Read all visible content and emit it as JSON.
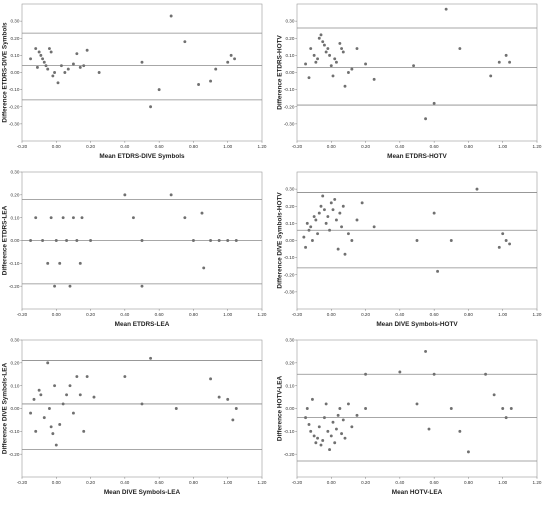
{
  "chart_data": [
    {
      "type": "scatter",
      "xlabel": "Mean ETDRS-DIVE Symbols",
      "ylabel": "Difference ETDRS-DIVE Symbols",
      "xlim": [
        -0.2,
        1.2
      ],
      "ylim": [
        -0.4,
        0.4
      ],
      "x_ticks": [
        "-0.20",
        "0.00",
        "0.20",
        "0.40",
        "0.60",
        "0.80",
        "1.00",
        "1.20"
      ],
      "y_ticks": [
        "0.30",
        "0.20",
        "0.10",
        "0.00",
        "-0.10",
        "-0.20",
        "-0.30"
      ],
      "x_tick_values": [
        -0.2,
        0,
        0.2,
        0.4,
        0.6,
        0.8,
        1.0,
        1.2
      ],
      "y_tick_values": [
        0.3,
        0.2,
        0.1,
        0,
        -0.1,
        -0.2,
        -0.3
      ],
      "ref_lines": [
        0.23,
        0.04,
        -0.16
      ],
      "points": [
        [
          -0.15,
          0.08
        ],
        [
          -0.12,
          0.14
        ],
        [
          -0.11,
          0.03
        ],
        [
          -0.1,
          0.12
        ],
        [
          -0.09,
          0.1
        ],
        [
          -0.08,
          0.08
        ],
        [
          -0.07,
          0.06
        ],
        [
          -0.06,
          0.04
        ],
        [
          -0.05,
          0.02
        ],
        [
          -0.04,
          0.14
        ],
        [
          -0.03,
          0.12
        ],
        [
          -0.02,
          -0.02
        ],
        [
          -0.01,
          0.0
        ],
        [
          0.01,
          -0.06
        ],
        [
          0.03,
          0.04
        ],
        [
          0.05,
          0.0
        ],
        [
          0.07,
          0.02
        ],
        [
          0.1,
          0.05
        ],
        [
          0.12,
          0.11
        ],
        [
          0.14,
          0.03
        ],
        [
          0.16,
          0.04
        ],
        [
          0.18,
          0.13
        ],
        [
          0.25,
          0.0
        ],
        [
          0.5,
          0.06
        ],
        [
          0.55,
          -0.2
        ],
        [
          0.6,
          -0.1
        ],
        [
          0.67,
          0.33
        ],
        [
          0.75,
          0.18
        ],
        [
          0.83,
          -0.07
        ],
        [
          0.9,
          -0.05
        ],
        [
          0.93,
          0.02
        ],
        [
          1.0,
          0.06
        ],
        [
          1.02,
          0.1
        ],
        [
          1.04,
          0.08
        ]
      ]
    },
    {
      "type": "scatter",
      "xlabel": "Mean ETDRS-HOTV",
      "ylabel": "Difference ETDRS-HOTV",
      "xlim": [
        -0.2,
        1.2
      ],
      "ylim": [
        -0.4,
        0.4
      ],
      "x_ticks": [
        "-0.20",
        "0.00",
        "0.20",
        "0.40",
        "0.60",
        "0.80",
        "1.00",
        "1.20"
      ],
      "y_ticks": [
        "0.30",
        "0.20",
        "0.10",
        "0.00",
        "-0.10",
        "-0.20",
        "-0.30"
      ],
      "x_tick_values": [
        -0.2,
        0,
        0.2,
        0.4,
        0.6,
        0.8,
        1.0,
        1.2
      ],
      "y_tick_values": [
        0.3,
        0.2,
        0.1,
        0,
        -0.1,
        -0.2,
        -0.3
      ],
      "ref_lines": [
        0.26,
        0.03,
        -0.19
      ],
      "points": [
        [
          -0.15,
          0.05
        ],
        [
          -0.13,
          -0.03
        ],
        [
          -0.12,
          0.14
        ],
        [
          -0.1,
          0.1
        ],
        [
          -0.09,
          0.06
        ],
        [
          -0.08,
          0.08
        ],
        [
          -0.07,
          0.2
        ],
        [
          -0.06,
          0.22
        ],
        [
          -0.05,
          0.18
        ],
        [
          -0.04,
          0.16
        ],
        [
          -0.03,
          0.12
        ],
        [
          -0.02,
          0.14
        ],
        [
          -0.01,
          0.1
        ],
        [
          0.0,
          0.04
        ],
        [
          0.01,
          -0.02
        ],
        [
          0.02,
          0.08
        ],
        [
          0.03,
          0.06
        ],
        [
          0.05,
          0.17
        ],
        [
          0.06,
          0.14
        ],
        [
          0.07,
          0.12
        ],
        [
          0.08,
          -0.08
        ],
        [
          0.1,
          0.0
        ],
        [
          0.12,
          0.02
        ],
        [
          0.15,
          0.14
        ],
        [
          0.2,
          0.05
        ],
        [
          0.25,
          -0.04
        ],
        [
          0.48,
          0.04
        ],
        [
          0.55,
          -0.27
        ],
        [
          0.6,
          -0.18
        ],
        [
          0.67,
          0.37
        ],
        [
          0.75,
          0.14
        ],
        [
          0.93,
          -0.02
        ],
        [
          0.98,
          0.06
        ],
        [
          1.02,
          0.1
        ],
        [
          1.04,
          0.06
        ]
      ]
    },
    {
      "type": "scatter",
      "xlabel": "Mean ETDRS-LEA",
      "ylabel": "Difference ETDRS-LEA",
      "xlim": [
        -0.2,
        1.2
      ],
      "ylim": [
        -0.3,
        0.3
      ],
      "x_ticks": [
        "-0.20",
        "0.00",
        "0.20",
        "0.40",
        "0.60",
        "0.80",
        "1.00",
        "1.20"
      ],
      "y_ticks": [
        "0.30",
        "0.20",
        "0.10",
        "0.00",
        "-0.10",
        "-0.20"
      ],
      "x_tick_values": [
        -0.2,
        0,
        0.2,
        0.4,
        0.6,
        0.8,
        1.0,
        1.2
      ],
      "y_tick_values": [
        0.3,
        0.2,
        0.1,
        0,
        -0.1,
        -0.2
      ],
      "ref_lines": [
        0.18,
        0.0,
        -0.19
      ],
      "points": [
        [
          -0.15,
          0.0
        ],
        [
          -0.12,
          0.1
        ],
        [
          -0.08,
          0.0
        ],
        [
          -0.05,
          -0.1
        ],
        [
          -0.03,
          0.1
        ],
        [
          -0.01,
          -0.2
        ],
        [
          0.0,
          0.0
        ],
        [
          0.02,
          -0.1
        ],
        [
          0.04,
          0.1
        ],
        [
          0.06,
          0.0
        ],
        [
          0.08,
          -0.2
        ],
        [
          0.1,
          0.1
        ],
        [
          0.12,
          0.0
        ],
        [
          0.14,
          -0.1
        ],
        [
          0.15,
          0.1
        ],
        [
          0.2,
          0.0
        ],
        [
          0.4,
          0.2
        ],
        [
          0.45,
          0.1
        ],
        [
          0.5,
          0.0
        ],
        [
          0.5,
          -0.2
        ],
        [
          0.67,
          0.2
        ],
        [
          0.75,
          0.1
        ],
        [
          0.8,
          0.0
        ],
        [
          0.85,
          0.12
        ],
        [
          0.86,
          -0.12
        ],
        [
          0.9,
          0.0
        ],
        [
          0.95,
          0.0
        ],
        [
          1.0,
          0.0
        ],
        [
          1.05,
          0.0
        ]
      ]
    },
    {
      "type": "scatter",
      "xlabel": "Mean DIVE Symbols-HOTV",
      "ylabel": "Difference DIVE Symbols-HOTV",
      "xlim": [
        -0.2,
        1.2
      ],
      "ylim": [
        -0.4,
        0.4
      ],
      "x_ticks": [
        "-0.20",
        "0.00",
        "0.20",
        "0.40",
        "0.60",
        "0.80",
        "1.00",
        "1.20"
      ],
      "y_ticks": [
        "0.30",
        "0.20",
        "0.10",
        "0.00",
        "-0.10",
        "-0.20",
        "-0.30"
      ],
      "x_tick_values": [
        -0.2,
        0,
        0.2,
        0.4,
        0.6,
        0.8,
        1.0,
        1.2
      ],
      "y_tick_values": [
        0.3,
        0.2,
        0.1,
        0,
        -0.1,
        -0.2,
        -0.3
      ],
      "ref_lines": [
        0.28,
        0.06,
        -0.16
      ],
      "points": [
        [
          -0.16,
          0.02
        ],
        [
          -0.15,
          -0.04
        ],
        [
          -0.14,
          0.1
        ],
        [
          -0.13,
          0.06
        ],
        [
          -0.12,
          0.08
        ],
        [
          -0.11,
          0.0
        ],
        [
          -0.1,
          0.14
        ],
        [
          -0.09,
          0.12
        ],
        [
          -0.08,
          0.04
        ],
        [
          -0.07,
          0.16
        ],
        [
          -0.06,
          0.2
        ],
        [
          -0.05,
          0.26
        ],
        [
          -0.04,
          0.18
        ],
        [
          -0.03,
          0.1
        ],
        [
          -0.02,
          0.14
        ],
        [
          -0.01,
          0.06
        ],
        [
          0.0,
          0.22
        ],
        [
          0.01,
          0.18
        ],
        [
          0.02,
          0.24
        ],
        [
          0.03,
          0.12
        ],
        [
          0.04,
          -0.05
        ],
        [
          0.05,
          0.16
        ],
        [
          0.06,
          0.08
        ],
        [
          0.07,
          0.2
        ],
        [
          0.08,
          -0.08
        ],
        [
          0.1,
          0.04
        ],
        [
          0.12,
          0.0
        ],
        [
          0.15,
          0.12
        ],
        [
          0.18,
          0.22
        ],
        [
          0.25,
          0.08
        ],
        [
          0.5,
          0.0
        ],
        [
          0.6,
          0.16
        ],
        [
          0.62,
          -0.18
        ],
        [
          0.7,
          0.0
        ],
        [
          0.85,
          0.3
        ],
        [
          0.98,
          -0.04
        ],
        [
          1.0,
          0.04
        ],
        [
          1.02,
          0.0
        ],
        [
          1.04,
          -0.02
        ]
      ]
    },
    {
      "type": "scatter",
      "xlabel": "Mean DIVE Symbols-LEA",
      "ylabel": "Difference DIVE Symbols-LEA",
      "xlim": [
        -0.2,
        1.2
      ],
      "ylim": [
        -0.3,
        0.3
      ],
      "x_ticks": [
        "-0.20",
        "0.00",
        "0.20",
        "0.40",
        "0.60",
        "0.80",
        "1.00",
        "1.20"
      ],
      "y_ticks": [
        "0.30",
        "0.20",
        "0.10",
        "0.00",
        "-0.10",
        "-0.20"
      ],
      "x_tick_values": [
        -0.2,
        0,
        0.2,
        0.4,
        0.6,
        0.8,
        1.0,
        1.2
      ],
      "y_tick_values": [
        0.3,
        0.2,
        0.1,
        0,
        -0.1,
        -0.2
      ],
      "ref_lines": [
        0.21,
        0.02,
        -0.18
      ],
      "points": [
        [
          -0.15,
          -0.02
        ],
        [
          -0.13,
          0.04
        ],
        [
          -0.12,
          -0.1
        ],
        [
          -0.1,
          0.08
        ],
        [
          -0.09,
          0.06
        ],
        [
          -0.07,
          -0.04
        ],
        [
          -0.05,
          0.2
        ],
        [
          -0.04,
          0.0
        ],
        [
          -0.03,
          -0.08
        ],
        [
          -0.02,
          -0.11
        ],
        [
          -0.01,
          0.1
        ],
        [
          0.0,
          -0.16
        ],
        [
          0.02,
          -0.07
        ],
        [
          0.04,
          0.02
        ],
        [
          0.06,
          0.06
        ],
        [
          0.08,
          0.1
        ],
        [
          0.1,
          -0.02
        ],
        [
          0.12,
          0.14
        ],
        [
          0.14,
          0.06
        ],
        [
          0.16,
          -0.1
        ],
        [
          0.18,
          0.14
        ],
        [
          0.22,
          0.05
        ],
        [
          0.4,
          0.14
        ],
        [
          0.5,
          0.02
        ],
        [
          0.55,
          0.22
        ],
        [
          0.7,
          0.0
        ],
        [
          0.9,
          0.13
        ],
        [
          0.95,
          0.05
        ],
        [
          1.0,
          0.04
        ],
        [
          1.03,
          -0.05
        ],
        [
          1.05,
          0.0
        ]
      ]
    },
    {
      "type": "scatter",
      "xlabel": "Mean HOTV-LEA",
      "ylabel": "Difference HOTV-LEA",
      "xlim": [
        -0.2,
        1.2
      ],
      "ylim": [
        -0.3,
        0.3
      ],
      "x_ticks": [
        "-0.20",
        "0.00",
        "0.20",
        "0.40",
        "0.60",
        "0.80",
        "1.00",
        "1.20"
      ],
      "y_ticks": [
        "0.30",
        "0.20",
        "0.10",
        "0.00",
        "-0.10",
        "-0.20"
      ],
      "x_tick_values": [
        -0.2,
        0,
        0.2,
        0.4,
        0.6,
        0.8,
        1.0,
        1.2
      ],
      "y_tick_values": [
        0.3,
        0.2,
        0.1,
        0,
        -0.1,
        -0.2
      ],
      "ref_lines": [
        0.15,
        -0.04,
        -0.23
      ],
      "points": [
        [
          -0.15,
          -0.04
        ],
        [
          -0.14,
          0.0
        ],
        [
          -0.13,
          -0.07
        ],
        [
          -0.12,
          -0.1
        ],
        [
          -0.11,
          0.04
        ],
        [
          -0.1,
          -0.12
        ],
        [
          -0.09,
          -0.15
        ],
        [
          -0.08,
          -0.13
        ],
        [
          -0.07,
          -0.08
        ],
        [
          -0.06,
          -0.16
        ],
        [
          -0.05,
          -0.14
        ],
        [
          -0.04,
          -0.04
        ],
        [
          -0.03,
          0.02
        ],
        [
          -0.02,
          -0.1
        ],
        [
          -0.01,
          -0.18
        ],
        [
          0.0,
          -0.12
        ],
        [
          0.01,
          -0.06
        ],
        [
          0.02,
          -0.15
        ],
        [
          0.03,
          -0.09
        ],
        [
          0.04,
          -0.03
        ],
        [
          0.05,
          0.0
        ],
        [
          0.06,
          -0.11
        ],
        [
          0.07,
          -0.05
        ],
        [
          0.08,
          -0.13
        ],
        [
          0.1,
          0.02
        ],
        [
          0.12,
          -0.08
        ],
        [
          0.15,
          -0.03
        ],
        [
          0.2,
          0.15
        ],
        [
          0.2,
          0.0
        ],
        [
          0.4,
          0.16
        ],
        [
          0.5,
          0.02
        ],
        [
          0.55,
          0.25
        ],
        [
          0.57,
          -0.09
        ],
        [
          0.6,
          0.15
        ],
        [
          0.7,
          0.0
        ],
        [
          0.75,
          -0.1
        ],
        [
          0.8,
          -0.19
        ],
        [
          0.9,
          0.15
        ],
        [
          0.95,
          0.06
        ],
        [
          1.0,
          0.0
        ],
        [
          1.02,
          -0.04
        ],
        [
          1.05,
          0.0
        ]
      ]
    }
  ]
}
